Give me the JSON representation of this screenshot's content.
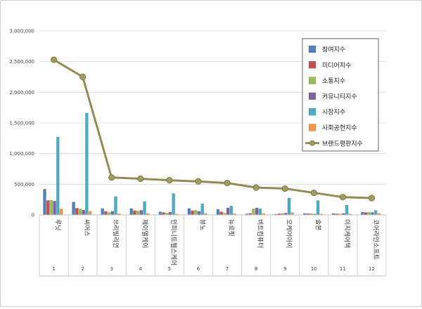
{
  "chart_data": {
    "type": "bar",
    "title": "",
    "xlabel": "",
    "ylabel": "",
    "ylim": [
      0,
      3000000
    ],
    "y_ticks": [
      "0",
      "500,000",
      "1,000,000",
      "1,500,000",
      "2,000,000",
      "2,500,000",
      "3,000,000"
    ],
    "grid": true,
    "legend_position": "top-right",
    "x_numbers": [
      "1",
      "2",
      "3",
      "4",
      "5",
      "6",
      "7",
      "8",
      "9",
      "10",
      "11",
      "12"
    ],
    "categories": [
      "루닛",
      "씨어스",
      "쓰리빌리언",
      "제이엘케이",
      "인피니트헬스케어",
      "뷰노",
      "뉴로핏",
      "비트컴퓨터",
      "오케어아이",
      "솔본",
      "이지케어텍",
      "코어라인소프트"
    ],
    "series": [
      {
        "name": "참여지수",
        "color": "#4f81bd",
        "values": [
          420000,
          210000,
          105000,
          105000,
          50000,
          105000,
          90000,
          18000,
          12000,
          25000,
          25000,
          45000
        ]
      },
      {
        "name": "미디어지수",
        "color": "#c0504d",
        "values": [
          235000,
          110000,
          60000,
          70000,
          40000,
          70000,
          50000,
          25000,
          20000,
          20000,
          18000,
          40000
        ]
      },
      {
        "name": "소통지수",
        "color": "#9bbb59",
        "values": [
          240000,
          100000,
          40000,
          65000,
          30000,
          75000,
          30000,
          100000,
          25000,
          20000,
          15000,
          45000
        ]
      },
      {
        "name": "커뮤니티지수",
        "color": "#8064a2",
        "values": [
          225000,
          80000,
          60000,
          75000,
          45000,
          60000,
          115000,
          115000,
          30000,
          15000,
          25000,
          40000
        ]
      },
      {
        "name": "시장지수",
        "color": "#4bacc6",
        "values": [
          1270000,
          1660000,
          300000,
          220000,
          350000,
          180000,
          145000,
          100000,
          275000,
          235000,
          160000,
          75000
        ]
      },
      {
        "name": "사회공헌지수",
        "color": "#f79646",
        "values": [
          100000,
          60000,
          20000,
          25000,
          15000,
          25000,
          20000,
          25000,
          40000,
          15000,
          15000,
          25000
        ]
      }
    ],
    "line_series": {
      "name": "브랜드평판지수",
      "color": "#948a54",
      "values": [
        2530000,
        2250000,
        610000,
        590000,
        565000,
        545000,
        520000,
        445000,
        430000,
        360000,
        290000,
        275000
      ]
    }
  }
}
